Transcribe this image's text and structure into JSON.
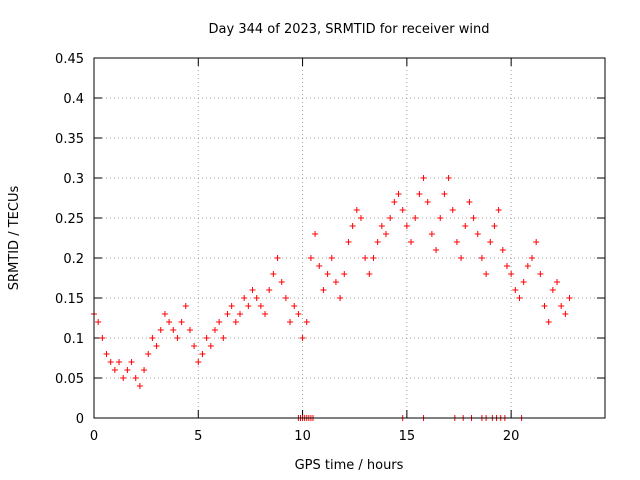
{
  "chart_data": {
    "type": "scatter",
    "title": "Day 344 of 2023, SRMTID for receiver wind",
    "xlabel": "GPS time / hours",
    "ylabel": "SRMTID / TECUs",
    "xlim": [
      0,
      24.5
    ],
    "ylim": [
      0,
      0.45
    ],
    "xticks": [
      0,
      5,
      10,
      15,
      20
    ],
    "xtick_labels": [
      "0",
      "5",
      "10",
      "15",
      "20"
    ],
    "yticks": [
      0,
      0.05,
      0.1,
      0.15,
      0.2,
      0.25,
      0.3,
      0.35,
      0.4,
      0.45
    ],
    "ytick_labels": [
      "0",
      "0.05",
      "0.1",
      "0.15",
      "0.2",
      "0.25",
      "0.3",
      "0.35",
      "0.4",
      "0.45"
    ],
    "grid": true,
    "marker": "+",
    "series": [
      {
        "name": "SRMTID",
        "color": "#ff0000",
        "x": [
          0.0,
          0.2,
          0.4,
          0.6,
          0.8,
          1.0,
          1.2,
          1.4,
          1.6,
          1.8,
          2.0,
          2.2,
          2.4,
          2.6,
          2.8,
          3.0,
          3.2,
          3.4,
          3.6,
          3.8,
          4.0,
          4.2,
          4.4,
          4.6,
          4.8,
          5.0,
          5.2,
          5.4,
          5.6,
          5.8,
          6.0,
          6.2,
          6.4,
          6.6,
          6.8,
          7.0,
          7.2,
          7.4,
          7.6,
          7.8,
          8.0,
          8.2,
          8.4,
          8.6,
          8.8,
          9.0,
          9.2,
          9.4,
          9.6,
          9.8,
          10.0,
          10.2,
          10.4,
          10.6,
          10.8,
          11.0,
          11.2,
          11.4,
          11.6,
          11.8,
          12.0,
          12.2,
          12.4,
          12.6,
          12.8,
          13.0,
          13.2,
          13.4,
          13.6,
          13.8,
          14.0,
          14.2,
          14.4,
          14.6,
          14.8,
          15.0,
          15.2,
          15.4,
          15.6,
          15.8,
          16.0,
          16.2,
          16.4,
          16.6,
          16.8,
          17.0,
          17.2,
          17.4,
          17.6,
          17.8,
          18.0,
          18.2,
          18.4,
          18.6,
          18.8,
          19.0,
          19.2,
          19.4,
          19.6,
          19.8,
          20.0,
          20.2,
          20.4,
          20.6,
          20.8,
          21.0,
          21.2,
          21.4,
          21.6,
          21.8,
          22.0,
          22.2,
          22.4,
          22.6,
          22.8
        ],
        "y": [
          0.13,
          0.12,
          0.1,
          0.08,
          0.07,
          0.06,
          0.07,
          0.05,
          0.06,
          0.07,
          0.05,
          0.04,
          0.06,
          0.08,
          0.1,
          0.09,
          0.11,
          0.13,
          0.12,
          0.11,
          0.1,
          0.12,
          0.14,
          0.11,
          0.09,
          0.07,
          0.08,
          0.1,
          0.09,
          0.11,
          0.12,
          0.1,
          0.13,
          0.14,
          0.12,
          0.13,
          0.15,
          0.14,
          0.16,
          0.15,
          0.14,
          0.13,
          0.16,
          0.18,
          0.2,
          0.17,
          0.15,
          0.12,
          0.14,
          0.13,
          0.1,
          0.12,
          0.2,
          0.23,
          0.19,
          0.16,
          0.18,
          0.2,
          0.17,
          0.15,
          0.18,
          0.22,
          0.24,
          0.26,
          0.25,
          0.2,
          0.18,
          0.2,
          0.22,
          0.24,
          0.23,
          0.25,
          0.27,
          0.28,
          0.26,
          0.24,
          0.22,
          0.25,
          0.28,
          0.3,
          0.27,
          0.23,
          0.21,
          0.25,
          0.28,
          0.3,
          0.26,
          0.22,
          0.2,
          0.24,
          0.27,
          0.25,
          0.23,
          0.2,
          0.18,
          0.22,
          0.24,
          0.26,
          0.21,
          0.19,
          0.18,
          0.16,
          0.15,
          0.17,
          0.19,
          0.2,
          0.22,
          0.18,
          0.14,
          0.12,
          0.16,
          0.17,
          0.14,
          0.13,
          0.15
        ]
      }
    ],
    "zero_marks_x": [
      9.8,
      9.9,
      10.0,
      10.1,
      10.2,
      10.3,
      10.4,
      10.5,
      14.8,
      15.8,
      17.3,
      17.7,
      18.1,
      18.6,
      18.8,
      19.1,
      19.3,
      19.5,
      19.7,
      20.5
    ]
  }
}
